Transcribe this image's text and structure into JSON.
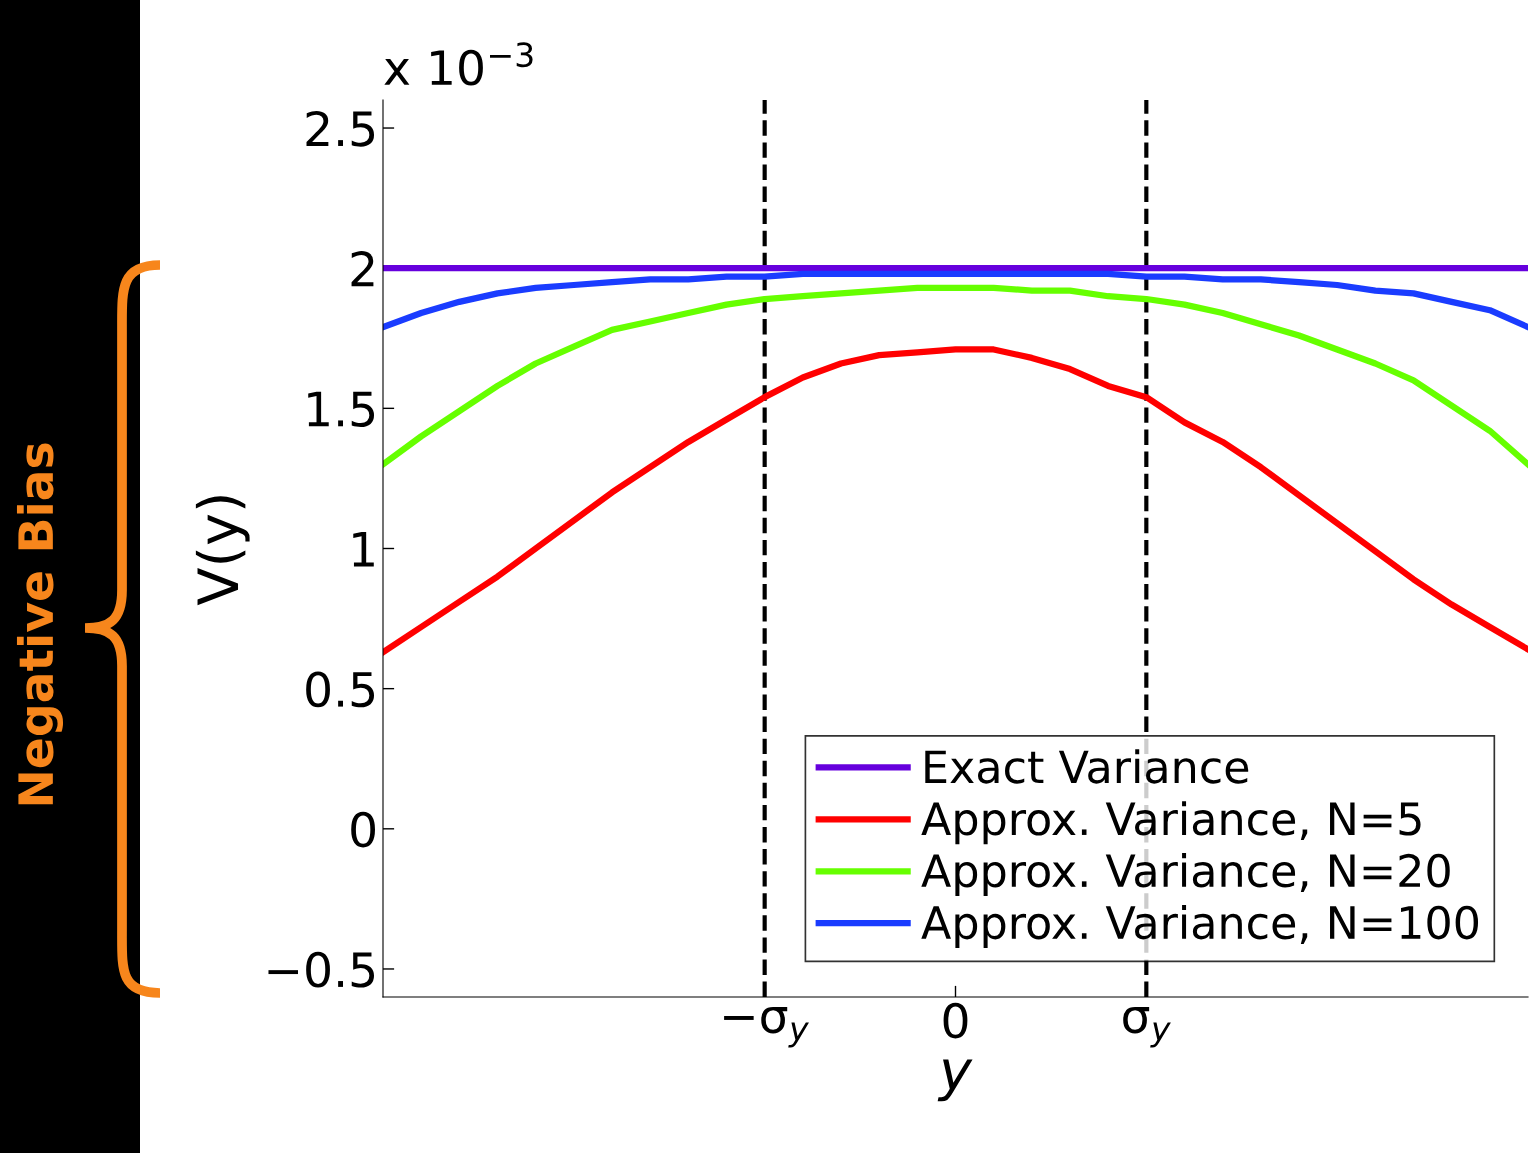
{
  "chart_data": {
    "type": "line",
    "xlabel": "y",
    "ylabel": "V(y)",
    "annotations": [
      "x 10$^{−3}$",
      "Negative Bias"
    ],
    "categories": [
      null,
      null,
      null,
      null,
      null,
      null,
      null,
      null,
      null,
      null,
      "−σ$_{y}$",
      null,
      null,
      null,
      null,
      "0",
      null,
      null,
      null,
      null,
      "σ$_{y}$",
      null,
      null,
      null,
      null,
      null,
      null,
      null,
      null,
      null,
      null
    ],
    "series": [
      {
        "name": "Exact Variance",
        "color": "#6600dd",
        "values": [
          2.0,
          2.0,
          2.0,
          2.0,
          2.0,
          2.0,
          2.0,
          2.0,
          2.0,
          2.0,
          2.0,
          2.0,
          2.0,
          2.0,
          2.0,
          2.0,
          2.0,
          2.0,
          2.0,
          2.0,
          2.0,
          2.0,
          2.0,
          2.0,
          2.0,
          2.0,
          2.0,
          2.0,
          2.0,
          2.0,
          2.0
        ]
      },
      {
        "name": "Approx. Variance, N=5",
        "color": "#ff0000",
        "values": [
          0.63,
          0.72,
          0.81,
          0.9,
          1.0,
          1.1,
          1.2,
          1.29,
          1.38,
          1.46,
          1.54,
          1.61,
          1.66,
          1.69,
          1.7,
          1.71,
          1.71,
          1.68,
          1.64,
          1.58,
          1.54,
          1.45,
          1.38,
          1.29,
          1.19,
          1.09,
          0.99,
          0.89,
          0.8,
          0.72,
          0.64
        ]
      },
      {
        "name": "Approx. Variance, N=20",
        "color": "#66ff00",
        "values": [
          1.3,
          1.4,
          1.49,
          1.58,
          1.66,
          1.72,
          1.78,
          1.81,
          1.84,
          1.87,
          1.89,
          1.9,
          1.91,
          1.92,
          1.93,
          1.93,
          1.93,
          1.92,
          1.92,
          1.9,
          1.89,
          1.87,
          1.84,
          1.8,
          1.76,
          1.71,
          1.66,
          1.6,
          1.51,
          1.42,
          1.3
        ]
      },
      {
        "name": "Approx. Variance, N=100",
        "color": "#1a3cff",
        "values": [
          1.79,
          1.84,
          1.88,
          1.91,
          1.93,
          1.94,
          1.95,
          1.96,
          1.96,
          1.97,
          1.97,
          1.98,
          1.98,
          1.98,
          1.98,
          1.98,
          1.98,
          1.98,
          1.98,
          1.98,
          1.97,
          1.97,
          1.96,
          1.96,
          1.95,
          1.94,
          1.92,
          1.91,
          1.88,
          1.85,
          1.79
        ]
      }
    ],
    "ylim": [
      -0.6,
      2.6
    ],
    "yticks": [
      {
        "value": -0.5,
        "label": "−0.5"
      },
      0,
      0.5,
      1,
      1.5,
      2,
      2.5
    ],
    "ref_lines": [
      {
        "axis": "x",
        "value": "−σ$_{y}$",
        "color": "#000000",
        "line_style": "dashed"
      },
      {
        "axis": "x",
        "value": "σ$_{y}$",
        "color": "#000000",
        "line_style": "dashed"
      }
    ],
    "legend": "bottom right",
    "marker": "none",
    "line_style": "solid"
  }
}
